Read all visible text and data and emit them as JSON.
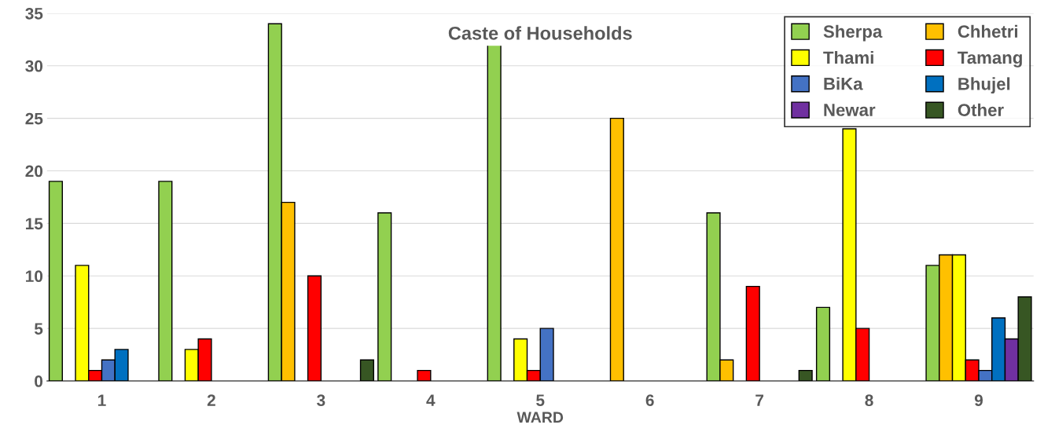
{
  "chart_data": {
    "type": "bar",
    "title": "Caste of Households",
    "xlabel": "WARD",
    "categories": [
      "1",
      "2",
      "3",
      "4",
      "5",
      "6",
      "7",
      "8",
      "9"
    ],
    "series": [
      {
        "name": "Sherpa",
        "color": "#92d050",
        "values": [
          19,
          19,
          34,
          16,
          32,
          null,
          16,
          7,
          11
        ]
      },
      {
        "name": "Chhetri",
        "color": "#ffc000",
        "values": [
          null,
          null,
          17,
          null,
          null,
          25,
          2,
          null,
          12
        ]
      },
      {
        "name": "Thami",
        "color": "#ffff00",
        "values": [
          11,
          3,
          null,
          null,
          4,
          null,
          null,
          24,
          12
        ]
      },
      {
        "name": "Tamang",
        "color": "#ff0000",
        "values": [
          1,
          4,
          10,
          1,
          1,
          null,
          9,
          5,
          2
        ]
      },
      {
        "name": "BiKa",
        "color": "#4472c4",
        "values": [
          2,
          null,
          null,
          null,
          5,
          null,
          null,
          null,
          1
        ]
      },
      {
        "name": "Bhujel",
        "color": "#0070c0",
        "values": [
          3,
          null,
          null,
          null,
          null,
          null,
          null,
          null,
          6
        ]
      },
      {
        "name": "Newar",
        "color": "#7030a0",
        "values": [
          null,
          null,
          null,
          null,
          null,
          null,
          null,
          null,
          4
        ]
      },
      {
        "name": "Other",
        "color": "#375623",
        "values": [
          null,
          null,
          2,
          null,
          null,
          null,
          1,
          null,
          8
        ]
      }
    ],
    "ylim": [
      0,
      35
    ],
    "yticks": [
      0,
      5,
      10,
      15,
      20,
      25,
      30,
      35
    ],
    "grid": "y",
    "legend": "top right"
  }
}
